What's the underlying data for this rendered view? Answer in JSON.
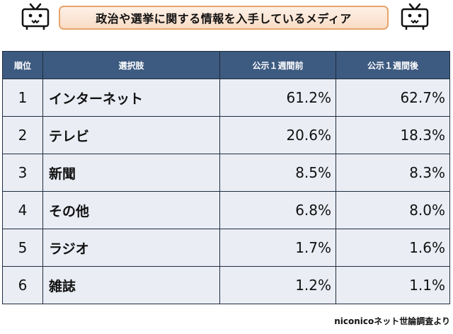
{
  "title": "政治や選挙に関する情報を入手しているメディア",
  "icons": {
    "left": "tv-icon",
    "right": "tv-icon"
  },
  "table": {
    "headers": [
      "順位",
      "選択肢",
      "公示１週間前",
      "公示１週間後"
    ],
    "rows": [
      {
        "rank": "1",
        "choice": "インターネット",
        "before": "61.2%",
        "after": "62.7%"
      },
      {
        "rank": "2",
        "choice": "テレビ",
        "before": "20.6%",
        "after": "18.3%"
      },
      {
        "rank": "3",
        "choice": "新聞",
        "before": "8.5%",
        "after": "8.3%"
      },
      {
        "rank": "4",
        "choice": "その他",
        "before": "6.8%",
        "after": "8.0%"
      },
      {
        "rank": "5",
        "choice": "ラジオ",
        "before": "1.7%",
        "after": "1.6%"
      },
      {
        "rank": "6",
        "choice": "雑誌",
        "before": "1.2%",
        "after": "1.1%"
      }
    ]
  },
  "source": "niconicoネット世論調査より",
  "colors": {
    "header_bg": "#3d5a80",
    "row_bg": "#eaedf4",
    "title_border": "#e8a46c"
  }
}
